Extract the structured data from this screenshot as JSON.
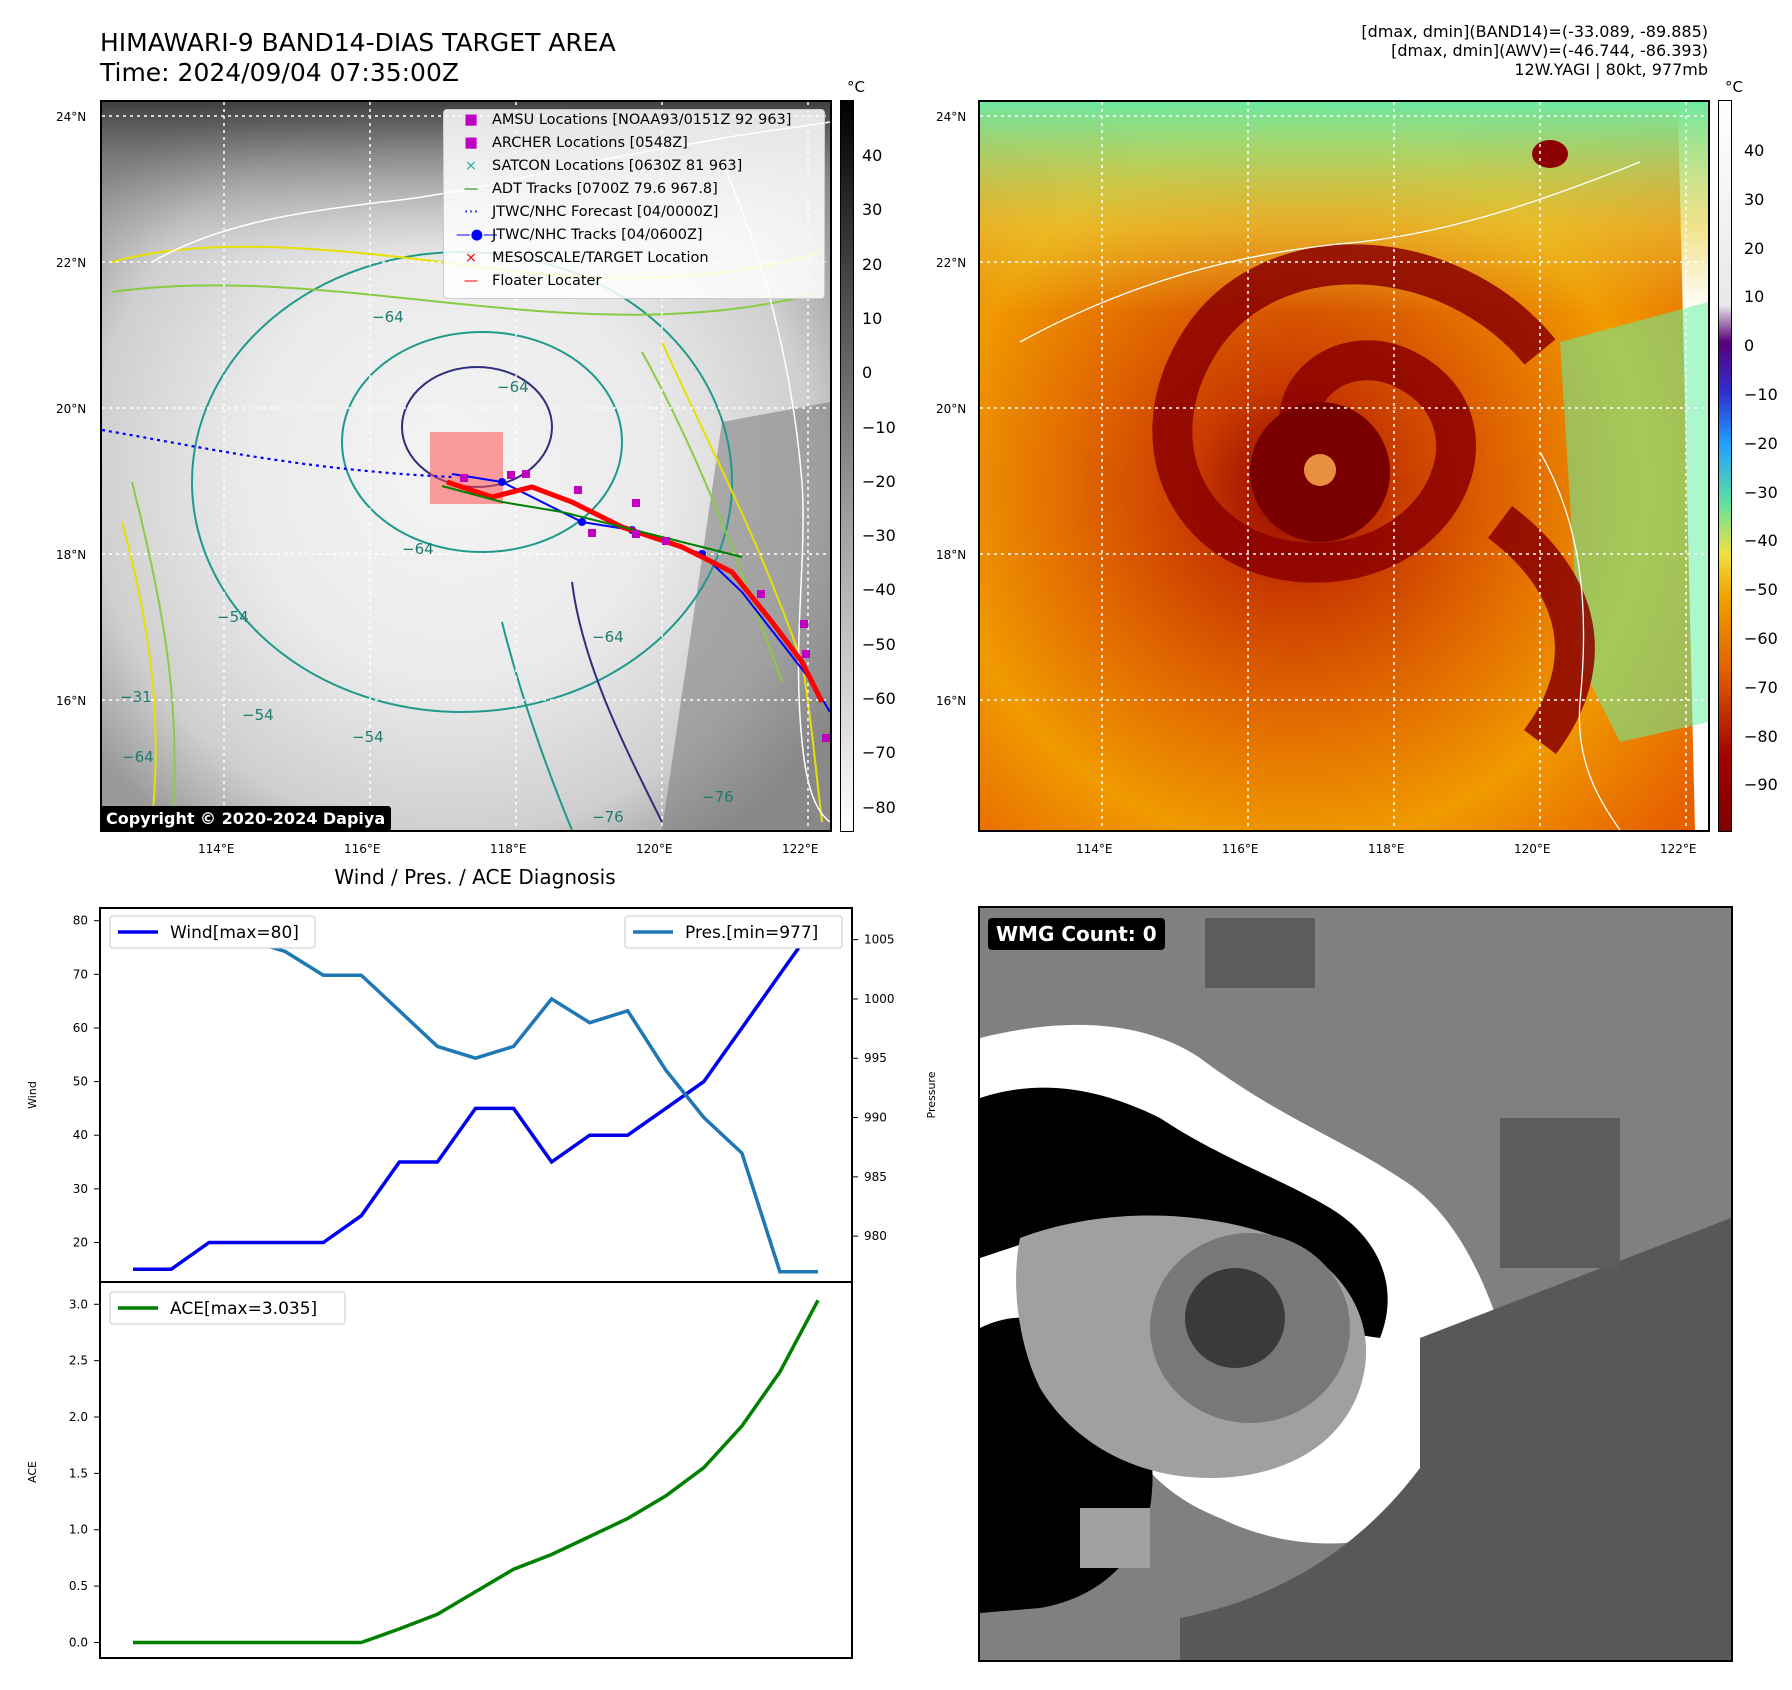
{
  "header": {
    "title_line1": "HIMAWARI-9 BAND14-DIAS TARGET AREA",
    "title_line2": "Time: 2024/09/04 07:35:00Z",
    "info_line1": "[dmax, dmin](BAND14)=(-33.089, -89.885)",
    "info_line2": "[dmax, dmin](AWV)=(-46.744, -86.393)",
    "info_line3": "12W.YAGI | 80kt, 977mb"
  },
  "map_axes": {
    "lat_labels": [
      "24°N",
      "22°N",
      "20°N",
      "18°N",
      "16°N"
    ],
    "lon_labels": [
      "114°E",
      "116°E",
      "118°E",
      "120°E",
      "122°E"
    ]
  },
  "left_map": {
    "copyright": "Copyright © 2020-2024 Dapiya",
    "colorbar_unit": "°C",
    "colorbar_ticks": [
      "40",
      "30",
      "20",
      "10",
      "0",
      "−10",
      "−20",
      "−30",
      "−40",
      "−50",
      "−60",
      "−70",
      "−80"
    ],
    "contour_labels": [
      "−64",
      "−64",
      "−64",
      "−54",
      "−54",
      "−64",
      "−76",
      "−64",
      "−54",
      "−31",
      "−76"
    ],
    "legend": [
      {
        "symbol": "■",
        "color": "#c000c0",
        "label": "AMSU Locations [NOAA93/0151Z 92 963]"
      },
      {
        "symbol": "■",
        "color": "#c000c0",
        "label": "ARCHER Locations [0548Z]"
      },
      {
        "symbol": "×",
        "color": "#20b0b0",
        "label": "SATCON Locations [0630Z 81 963]"
      },
      {
        "symbol": "—",
        "color": "#008000",
        "label": "ADT Tracks [0700Z 79.6 967.8]"
      },
      {
        "symbol": "⋯",
        "color": "#0000ff",
        "label": "JTWC/NHC Forecast [04/0000Z]"
      },
      {
        "symbol": "—●—",
        "color": "#0000ff",
        "label": "JTWC/NHC Tracks [04/0600Z]"
      },
      {
        "symbol": "×",
        "color": "#ff0000",
        "label": "MESOSCALE/TARGET Location"
      },
      {
        "symbol": "—",
        "color": "#ff0000",
        "label": "Floater Locater"
      }
    ]
  },
  "right_map": {
    "colorbar_unit": "°C",
    "colorbar_ticks": [
      "40",
      "30",
      "20",
      "10",
      "0",
      "−10",
      "−20",
      "−30",
      "−40",
      "−50",
      "−60",
      "−70",
      "−80",
      "−90"
    ]
  },
  "diagnosis": {
    "title": "Wind / Pres. / ACE Diagnosis",
    "wind_legend": "Wind[max=80]",
    "pres_legend": "Pres.[min=977]",
    "ace_legend": "ACE[max=3.035]",
    "wind_ylabel": "Wind",
    "pres_ylabel": "Pressure",
    "ace_ylabel": "ACE",
    "wind_color": "#0000ee",
    "pres_color": "#1f77b4",
    "ace_color": "#008000"
  },
  "wmg": {
    "label": "WMG Count: 0"
  },
  "chart_data": [
    {
      "type": "line",
      "title": "Wind / Pres. / ACE Diagnosis",
      "x": [
        0,
        1,
        2,
        3,
        4,
        5,
        6,
        7,
        8,
        9,
        10,
        11,
        12,
        13,
        14,
        15,
        16,
        17,
        18
      ],
      "series": [
        {
          "name": "Wind[max=80]",
          "axis": "left",
          "values": [
            15,
            15,
            20,
            20,
            20,
            20,
            25,
            35,
            35,
            45,
            45,
            35,
            40,
            40,
            45,
            50,
            60,
            70,
            80
          ]
        },
        {
          "name": "Pres.[min=977]",
          "axis": "right",
          "values": [
            1006,
            1006,
            1005,
            1005,
            1004,
            1002,
            1002,
            999,
            996,
            995,
            996,
            1000,
            998,
            999,
            994,
            990,
            987,
            977,
            977
          ]
        }
      ],
      "ylabel": "Wind",
      "ylim": [
        13,
        82
      ],
      "yticks": [
        20,
        30,
        40,
        50,
        60,
        70,
        80
      ],
      "y2label": "Pressure",
      "y2lim": [
        976.3,
        1007.5
      ],
      "y2ticks": [
        980,
        985,
        990,
        995,
        1000,
        1005
      ]
    },
    {
      "type": "line",
      "x": [
        0,
        1,
        2,
        3,
        4,
        5,
        6,
        7,
        8,
        9,
        10,
        11,
        12,
        13,
        14,
        15,
        16,
        17,
        18
      ],
      "series": [
        {
          "name": "ACE[max=3.035]",
          "values": [
            0,
            0,
            0,
            0,
            0,
            0,
            0,
            0.12,
            0.25,
            0.45,
            0.65,
            0.78,
            0.94,
            1.1,
            1.3,
            1.55,
            1.92,
            2.4,
            3.035
          ]
        }
      ],
      "ylabel": "ACE",
      "ylim": [
        -0.12,
        3.18
      ],
      "yticks": [
        0.0,
        0.5,
        1.0,
        1.5,
        2.0,
        2.5,
        3.0
      ]
    }
  ]
}
